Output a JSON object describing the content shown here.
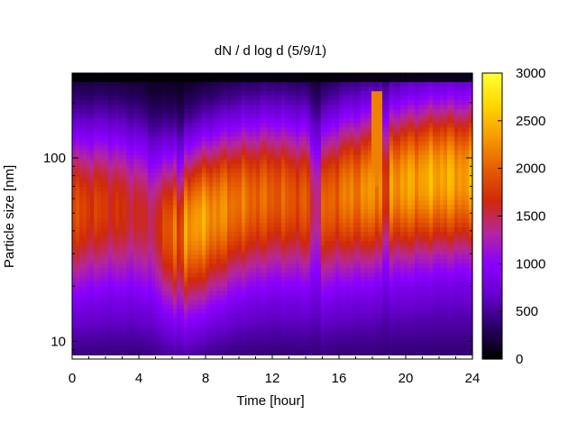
{
  "chart_data": {
    "type": "heatmap",
    "title": "dN / d log d (5/9/1)",
    "xlabel": "Time [hour]",
    "ylabel": "Particle size [nm]",
    "x_range": [
      0,
      24
    ],
    "x_ticks": [
      0,
      4,
      8,
      12,
      16,
      20,
      24
    ],
    "y_scale": "log",
    "y_range_nm": [
      8,
      290
    ],
    "y_ticks": [
      10,
      100
    ],
    "colorbar": {
      "range": [
        0,
        3000
      ],
      "ticks": [
        0,
        500,
        1000,
        1500,
        2000,
        2500,
        3000
      ],
      "colormap": "black-purple-red-orange-yellow (gnuplot pm3d)"
    },
    "palette": [
      "#000000",
      "#2a0066",
      "#6600cc",
      "#8b00ff",
      "#b5279b",
      "#d0290a",
      "#e65c00",
      "#f59a00",
      "#ffd400",
      "#ffff30"
    ],
    "mode_diameter_nm": [
      {
        "t": 0,
        "d": 55
      },
      {
        "t": 2,
        "d": 58
      },
      {
        "t": 4,
        "d": 55
      },
      {
        "t": 5,
        "d": 48
      },
      {
        "t": 6.5,
        "d": 42
      },
      {
        "t": 8,
        "d": 50
      },
      {
        "t": 10,
        "d": 60
      },
      {
        "t": 12,
        "d": 65
      },
      {
        "t": 14,
        "d": 62
      },
      {
        "t": 15,
        "d": 58
      },
      {
        "t": 16,
        "d": 65
      },
      {
        "t": 18,
        "d": 70
      },
      {
        "t": 20,
        "d": 75
      },
      {
        "t": 22,
        "d": 80
      },
      {
        "t": 24,
        "d": 80
      }
    ],
    "peak_dNdlogd": [
      {
        "t": 0,
        "v": 1900
      },
      {
        "t": 2,
        "v": 1800
      },
      {
        "t": 4,
        "v": 1600
      },
      {
        "t": 5,
        "v": 1500
      },
      {
        "t": 6.5,
        "v": 2400
      },
      {
        "t": 8,
        "v": 2400
      },
      {
        "t": 10,
        "v": 2200
      },
      {
        "t": 12,
        "v": 2100
      },
      {
        "t": 14,
        "v": 2000
      },
      {
        "t": 15,
        "v": 2000
      },
      {
        "t": 16,
        "v": 2200
      },
      {
        "t": 18,
        "v": 2400
      },
      {
        "t": 20,
        "v": 2500
      },
      {
        "t": 22,
        "v": 2600
      },
      {
        "t": 24,
        "v": 2500
      }
    ],
    "dips_hours": [
      6.5,
      14.6,
      18.8
    ],
    "spike_hour": 18.3
  }
}
